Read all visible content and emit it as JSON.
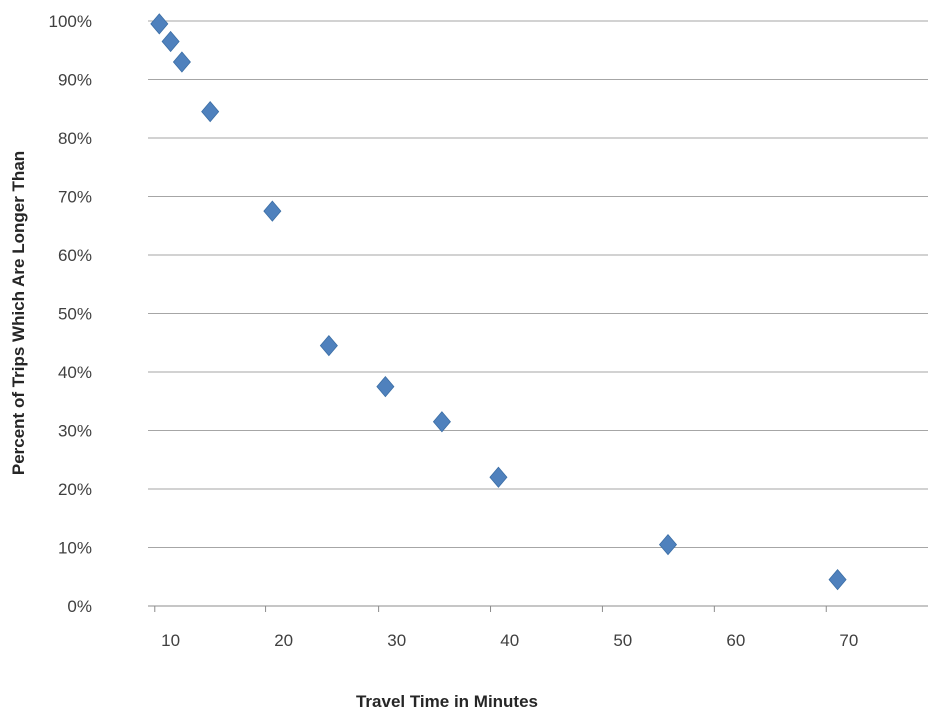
{
  "chart_data": {
    "type": "scatter",
    "title": "",
    "xlabel": "Travel Time in Minutes",
    "ylabel": "Percent of Trips Which Are Longer Than",
    "xlim": [
      8,
      77
    ],
    "ylim": [
      0,
      100
    ],
    "x_ticks": [
      10,
      20,
      30,
      40,
      50,
      60,
      70
    ],
    "y_ticks": [
      0,
      10,
      20,
      30,
      40,
      50,
      60,
      70,
      80,
      90,
      100
    ],
    "y_tick_labels": [
      "0%",
      "10%",
      "20%",
      "30%",
      "40%",
      "50%",
      "60%",
      "70%",
      "80%",
      "90%",
      "100%"
    ],
    "grid": true,
    "legend": "none",
    "marker": "diamond",
    "series": [
      {
        "color": "#4f81bd",
        "points": [
          {
            "x": 9,
            "y": 99.5
          },
          {
            "x": 10,
            "y": 96.5
          },
          {
            "x": 11,
            "y": 93
          },
          {
            "x": 13.5,
            "y": 84.5
          },
          {
            "x": 19,
            "y": 67.5
          },
          {
            "x": 24,
            "y": 44.5
          },
          {
            "x": 29,
            "y": 37.5
          },
          {
            "x": 34,
            "y": 31.5
          },
          {
            "x": 39,
            "y": 22
          },
          {
            "x": 54,
            "y": 10.5
          },
          {
            "x": 69,
            "y": 4.5
          }
        ]
      }
    ]
  }
}
